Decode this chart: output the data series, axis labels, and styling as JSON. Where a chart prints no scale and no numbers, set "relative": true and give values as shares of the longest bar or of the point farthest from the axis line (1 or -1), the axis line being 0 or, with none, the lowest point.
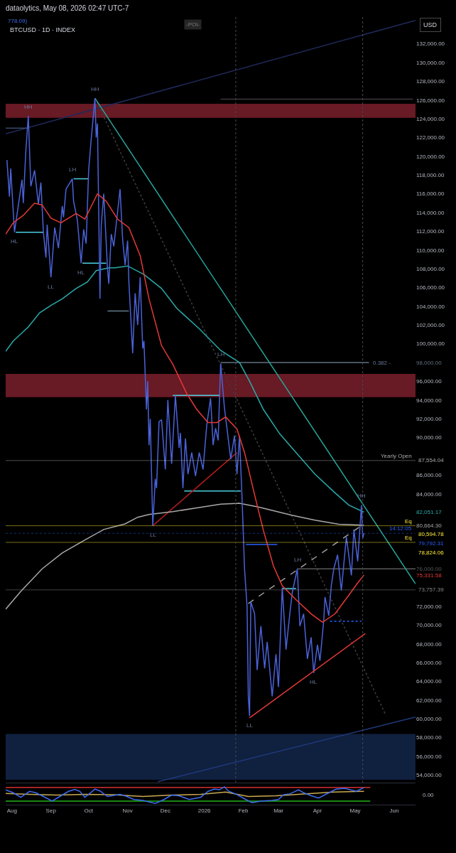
{
  "chart_data": [
    {
      "type": "line",
      "title": "dataolytics, May 08, 2026 02:47 UTC-7",
      "subtitle": "BTCUSD · 1D · INDEX",
      "ylabel": "USD",
      "xlim": [
        "2025-07-27",
        "2026-06-18"
      ],
      "ylim": [
        53200,
        135000
      ],
      "tick_labels": "y",
      "yticks": [
        {
          "value": 54000,
          "label": "54,000.00"
        },
        {
          "value": 56000,
          "label": "56,000.00"
        },
        {
          "value": 58000,
          "label": "58,000.00"
        },
        {
          "value": 60000,
          "label": "60,000.00"
        },
        {
          "value": 62000,
          "label": "62,000.00"
        },
        {
          "value": 64000,
          "label": "64,000.00"
        },
        {
          "value": 66000,
          "label": "66,000.00"
        },
        {
          "value": 68000,
          "label": "68,000.00"
        },
        {
          "value": 70000,
          "label": "70,000.00"
        },
        {
          "value": 72000,
          "label": "72,000.00"
        },
        {
          "value": 75331.58,
          "label": "75,331.58"
        },
        {
          "value": 76000,
          "label": "76,000.00"
        },
        {
          "value": 80664.3,
          "label": "80,664.30"
        },
        {
          "value": 82051.17,
          "label": "82,051.17"
        },
        {
          "value": 84000,
          "label": "84,000.00"
        },
        {
          "value": 86000,
          "label": "86,000.00"
        },
        {
          "value": 90000,
          "label": "90,000.00"
        },
        {
          "value": 92000,
          "label": "92,000.00"
        },
        {
          "value": 94000,
          "label": "94,000.00"
        },
        {
          "value": 96000,
          "label": "96,000.00"
        },
        {
          "value": 98000,
          "label": "98,000.00"
        },
        {
          "value": 100000,
          "label": "100,000.00"
        },
        {
          "value": 102000,
          "label": "102,000.00"
        },
        {
          "value": 104000,
          "label": "104,000.00"
        },
        {
          "value": 106000,
          "label": "106,000.00"
        },
        {
          "value": 108000,
          "label": "108,000.00"
        },
        {
          "value": 110000,
          "label": "110,000.00"
        },
        {
          "value": 112000,
          "label": "112,000.00"
        },
        {
          "value": 114000,
          "label": "114,000.00"
        },
        {
          "value": 116000,
          "label": "116,000.00"
        },
        {
          "value": 118000,
          "label": "118,000.00"
        },
        {
          "value": 120000,
          "label": "120,000.00"
        },
        {
          "value": 122000,
          "label": "122,000.00"
        },
        {
          "value": 124000,
          "label": "124,000.00"
        },
        {
          "value": 126000,
          "label": "126,000.00"
        },
        {
          "value": 128000,
          "label": "128,000.00"
        },
        {
          "value": 130000,
          "label": "130,000.00"
        },
        {
          "value": 132000,
          "label": "132,000.00"
        }
      ],
      "bands": [
        {
          "axis": "y",
          "from": 124100,
          "to": 125600,
          "color": "#7a1f2b"
        },
        {
          "axis": "y",
          "from": 94300,
          "to": 96800,
          "color": "#7a1f2b"
        },
        {
          "axis": "y",
          "from": 53500,
          "to": 58400,
          "color": "#13264a"
        }
      ],
      "ref_lines": [
        {
          "axis": "y",
          "value": 87554.04,
          "label": "87,554.04",
          "color": "#a8a8a8"
        },
        {
          "axis": "y",
          "value": 80594.78,
          "label": "80,594.78",
          "color": "#ffeb3b"
        },
        {
          "axis": "y",
          "value": 79792.31,
          "label": "79,792.31",
          "color": "#2962ff",
          "line_style": "dotted"
        },
        {
          "axis": "y",
          "value": 78824.06,
          "label": "78,824.06",
          "color": "#ffeb3b"
        },
        {
          "axis": "y",
          "value": 73757.39,
          "label": "73,757.39",
          "color": "#8a8a8a"
        },
        {
          "axis": "x",
          "value": "2026-01-26",
          "color": "#4a4a4a",
          "line_style": "dotted"
        },
        {
          "axis": "x",
          "value": "2026-05-07",
          "color": "#4a4a4a",
          "line_style": "dotted"
        }
      ],
      "annotations": [
        "-POI-",
        "778.09)",
        {
          "text": "HH",
          "x": "2025-08-14",
          "y": 124300
        },
        {
          "text": "HL",
          "x": "2025-08-03",
          "y": 111900
        },
        {
          "text": "LL",
          "x": "2025-09-01",
          "y": 107100
        },
        {
          "text": "LH",
          "x": "2025-09-18",
          "y": 117600
        },
        {
          "text": "HL",
          "x": "2025-09-25",
          "y": 108600
        },
        {
          "text": "HH",
          "x": "2025-10-06",
          "y": 126200
        },
        {
          "text": "LL",
          "x": "2025-11-21",
          "y": 80600
        },
        {
          "text": "LH",
          "x": "2026-01-14",
          "y": 97900
        },
        {
          "text": "LL",
          "x": "2026-02-06",
          "y": 60300
        },
        {
          "text": "LH",
          "x": "2026-03-16",
          "y": 76000
        },
        {
          "text": "HL",
          "x": "2026-03-29",
          "y": 64900
        },
        {
          "text": "HH",
          "x": "2026-05-06",
          "y": 82800
        },
        {
          "text": "0.382 -",
          "x": "2026-05-12",
          "y": 98000
        },
        {
          "text": "Yearly Open",
          "x": "2026-06-18",
          "y": 87554.04
        },
        {
          "text": "Eq",
          "x": "2026-06-18",
          "y": 80594.78
        },
        {
          "text": "14:12:05",
          "x": "2026-06-18",
          "y": 79792.31
        },
        {
          "text": "Eq",
          "x": "2026-06-18",
          "y": 78824.06
        }
      ],
      "series": [
        {
          "color": "#1f2a5a",
          "x": [
            "2025-07-27",
            "2026-06-18"
          ],
          "values": [
            122400,
            134500
          ]
        },
        {
          "color": "#1f3a7a",
          "x": [
            "2025-11-25",
            "2026-06-18"
          ],
          "values": [
            53300,
            60200
          ]
        },
        {
          "color": "#3c3c3c",
          "line_style": "dotted",
          "x": [
            "2025-10-06",
            "2026-05-25"
          ],
          "values": [
            126200,
            60500
          ]
        },
        {
          "color": "#3a3a3a",
          "x": [
            "2026-01-14",
            "2026-06-16"
          ],
          "values": [
            126100,
            126100
          ]
        },
        {
          "color": "#3a4a6b",
          "x": [
            "2025-07-27",
            "2025-08-14"
          ],
          "values": [
            123000,
            123000
          ]
        },
        {
          "color": "#607080",
          "x": [
            "2026-01-14",
            "2026-05-12"
          ],
          "values": [
            98000,
            98000
          ]
        },
        {
          "color": "#5a5a5a",
          "x": [
            "2026-03-16",
            "2026-06-18"
          ],
          "values": [
            76000,
            76000
          ]
        },
        {
          "color": "#4dd0e1",
          "x": [
            "2025-08-04",
            "2025-08-26"
          ],
          "values": [
            111900,
            111900
          ]
        },
        {
          "color": "#4dd0e1",
          "x": [
            "2025-09-19",
            "2025-10-01"
          ],
          "values": [
            117600,
            117600
          ]
        },
        {
          "color": "#4dd0e1",
          "x": [
            "2025-09-26",
            "2025-10-15"
          ],
          "values": [
            108600,
            108600
          ]
        },
        {
          "color": "#607d8b",
          "x": [
            "2025-10-16",
            "2025-11-02"
          ],
          "values": [
            103500,
            103500
          ]
        },
        {
          "color": "#4dd0e1",
          "x": [
            "2025-12-07",
            "2026-01-13"
          ],
          "values": [
            94500,
            94500
          ]
        },
        {
          "color": "#4dd0e1",
          "x": [
            "2025-12-16",
            "2026-01-30"
          ],
          "values": [
            84300,
            84300
          ]
        },
        {
          "color": "#2962ff",
          "x": [
            "2026-02-03",
            "2026-02-28"
          ],
          "values": [
            78600,
            78600
          ]
        },
        {
          "color": "#4dd0e1",
          "x": [
            "2026-03-04",
            "2026-03-15"
          ],
          "values": [
            73900,
            73900
          ]
        },
        {
          "color": "#2962ff",
          "line_style": "dotted",
          "x": [
            "2026-04-11",
            "2026-05-06"
          ],
          "values": [
            70400,
            70400
          ]
        },
        {
          "color": "#b71c1c",
          "x": [
            "2025-11-21",
            "2026-01-27"
          ],
          "values": [
            80600,
            88400
          ]
        },
        {
          "color": "#9e9e9e",
          "line_style": "dashed",
          "x": [
            "2026-02-05",
            "2026-05-07"
          ],
          "values": [
            72300,
            80700
          ]
        },
        {
          "color": "#26a69a",
          "x": [
            "2025-10-06",
            "2026-06-18"
          ],
          "values": [
            126200,
            74400
          ]
        },
        {
          "color": "#a8a8a8",
          "x": [
            "2025-07-27",
            "2025-08-08",
            "2025-08-25",
            "2025-09-10",
            "2025-09-27",
            "2025-10-13",
            "2025-10-30",
            "2025-11-09",
            "2025-11-18",
            "2025-12-07",
            "2025-12-26",
            "2026-01-14",
            "2026-01-29",
            "2026-02-13",
            "2026-03-12",
            "2026-03-30",
            "2026-04-18",
            "2026-05-08"
          ],
          "values": [
            71700,
            73600,
            76000,
            77700,
            79000,
            80200,
            80800,
            81500,
            81800,
            82100,
            82500,
            82900,
            83000,
            82600,
            81700,
            81200,
            80750,
            80664.3
          ]
        },
        {
          "color": "#2aa9a9",
          "x": [
            "2025-07-27",
            "2025-08-02",
            "2025-08-14",
            "2025-08-23",
            "2025-09-01",
            "2025-09-10",
            "2025-09-21",
            "2025-09-30",
            "2025-10-07",
            "2025-10-17",
            "2025-10-22",
            "2025-11-01",
            "2025-11-14",
            "2025-11-28",
            "2025-12-10",
            "2025-12-28",
            "2026-01-14",
            "2026-01-29",
            "2026-02-06",
            "2026-02-17",
            "2026-03-02",
            "2026-03-15",
            "2026-03-30",
            "2026-04-15",
            "2026-04-26",
            "2026-05-08"
          ],
          "values": [
            99200,
            100300,
            101800,
            103300,
            104100,
            104800,
            105900,
            106600,
            107800,
            108100,
            108100,
            108300,
            107400,
            105900,
            103800,
            101600,
            99300,
            98000,
            96000,
            93000,
            90400,
            88400,
            86100,
            84100,
            82800,
            82051.17
          ]
        },
        {
          "color": "#4a62d8",
          "x": [
            "2025-07-28",
            "2025-07-30",
            "2025-07-31",
            "2025-08-03",
            "2025-08-09",
            "2025-08-10",
            "2025-08-12",
            "2025-08-14",
            "2025-08-16",
            "2025-08-19",
            "2025-08-22",
            "2025-08-24",
            "2025-08-26",
            "2025-08-28",
            "2025-08-29",
            "2025-09-01",
            "2025-09-04",
            "2025-09-07",
            "2025-09-10",
            "2025-09-11",
            "2025-09-13",
            "2025-09-18",
            "2025-09-19",
            "2025-09-22",
            "2025-09-25",
            "2025-09-27",
            "2025-09-29",
            "2025-10-01",
            "2025-10-03",
            "2025-10-06",
            "2025-10-07",
            "2025-10-08",
            "2025-10-10",
            "2025-10-11",
            "2025-10-13",
            "2025-10-16",
            "2025-10-17",
            "2025-10-19",
            "2025-10-21",
            "2025-10-26",
            "2025-10-28",
            "2025-10-30",
            "2025-11-01",
            "2025-11-02",
            "2025-11-04",
            "2025-11-05",
            "2025-11-07",
            "2025-11-09",
            "2025-11-11",
            "2025-11-13",
            "2025-11-14",
            "2025-11-16",
            "2025-11-17",
            "2025-11-18",
            "2025-11-19",
            "2025-11-21",
            "2025-11-23",
            "2025-11-24",
            "2025-11-26",
            "2025-11-28",
            "2025-12-01",
            "2025-12-03",
            "2025-12-06",
            "2025-12-09",
            "2025-12-12",
            "2025-12-13",
            "2025-12-15",
            "2025-12-17",
            "2025-12-19",
            "2025-12-22",
            "2025-12-25",
            "2025-12-28",
            "2025-12-31",
            "2026-01-03",
            "2026-01-06",
            "2026-01-08",
            "2026-01-10",
            "2026-01-12",
            "2026-01-14",
            "2026-01-17",
            "2026-01-22",
            "2026-01-25",
            "2026-01-27",
            "2026-01-29",
            "2026-01-31",
            "2026-02-02",
            "2026-02-04",
            "2026-02-05",
            "2026-02-06",
            "2026-02-07",
            "2026-02-10",
            "2026-02-12",
            "2026-02-15",
            "2026-02-18",
            "2026-02-20",
            "2026-02-24",
            "2026-02-27",
            "2026-03-01",
            "2026-03-04",
            "2026-03-07",
            "2026-03-10",
            "2026-03-12",
            "2026-03-16",
            "2026-03-18",
            "2026-03-21",
            "2026-03-24",
            "2026-03-27",
            "2026-03-29",
            "2026-04-01",
            "2026-04-03",
            "2026-04-06",
            "2026-04-07",
            "2026-04-10",
            "2026-04-12",
            "2026-04-14",
            "2026-04-17",
            "2026-04-20",
            "2026-04-24",
            "2026-04-28",
            "2026-04-30",
            "2026-05-03",
            "2026-05-06",
            "2026-05-07",
            "2026-05-08"
          ],
          "values": [
            119600,
            115700,
            118700,
            111900,
            117500,
            115000,
            120500,
            124300,
            116800,
            118500,
            114900,
            117200,
            111900,
            109200,
            112700,
            107100,
            112400,
            110200,
            114700,
            113500,
            116500,
            117600,
            115200,
            113200,
            108600,
            112200,
            110700,
            118500,
            121800,
            126200,
            122000,
            123500,
            104800,
            112600,
            116000,
            108000,
            106400,
            111700,
            110400,
            116500,
            111200,
            108400,
            111000,
            106600,
            101600,
            99000,
            105400,
            102000,
            107100,
            99500,
            100300,
            93000,
            96000,
            89200,
            92000,
            80600,
            85600,
            84600,
            91700,
            91900,
            86600,
            94000,
            87200,
            94500,
            88900,
            90500,
            84600,
            89900,
            86100,
            88400,
            85900,
            88400,
            86600,
            91400,
            94200,
            89200,
            91000,
            89700,
            97900,
            93200,
            87700,
            90200,
            86100,
            90200,
            83600,
            76000,
            72000,
            62400,
            60300,
            72500,
            71200,
            65200,
            69900,
            65400,
            68200,
            62400,
            66900,
            63400,
            74000,
            67400,
            71200,
            73500,
            76000,
            69900,
            71200,
            66400,
            68700,
            64900,
            67900,
            66200,
            70500,
            73000,
            71000,
            74200,
            76000,
            77500,
            73700,
            79400,
            75300,
            80200,
            76800,
            82800,
            79300,
            79792.31
          ]
        },
        {
          "color": "#e53935",
          "x": [
            "2025-07-27",
            "2025-08-02",
            "2025-08-10",
            "2025-08-19",
            "2025-08-25",
            "2025-09-01",
            "2025-09-09",
            "2025-09-21",
            "2025-09-28",
            "2025-10-08",
            "2025-10-15",
            "2025-10-24",
            "2025-11-02",
            "2025-11-11",
            "2025-11-18",
            "2025-11-28",
            "2025-12-07",
            "2025-12-18",
            "2025-12-26",
            "2026-01-04",
            "2026-01-11",
            "2026-01-18",
            "2026-01-27",
            "2026-02-02",
            "2026-02-10",
            "2026-02-17",
            "2026-02-25",
            "2026-03-04",
            "2026-03-15",
            "2026-03-27",
            "2026-04-05",
            "2026-04-15",
            "2026-04-26",
            "2026-05-03",
            "2026-05-08"
          ],
          "values": [
            111700,
            112900,
            113700,
            115000,
            114800,
            113400,
            112900,
            113900,
            113300,
            116000,
            115200,
            113300,
            112400,
            109400,
            104800,
            99800,
            97800,
            94700,
            93000,
            91600,
            91600,
            92200,
            90900,
            88400,
            83900,
            80100,
            76300,
            74200,
            72700,
            71200,
            70300,
            71200,
            73200,
            74500,
            75331.58
          ]
        },
        {
          "color": "#e53935",
          "x": [
            "2026-02-06",
            "2026-05-09"
          ],
          "values": [
            60100,
            69100
          ]
        }
      ]
    },
    {
      "type": "line",
      "relative": true,
      "xlim": [
        "2025-07-27",
        "2026-06-18"
      ],
      "tick_labels": "x",
      "xticks": [
        {
          "value": "2025-08-01",
          "label": "Aug"
        },
        {
          "value": "2025-09-01",
          "label": "Sep"
        },
        {
          "value": "2025-10-01",
          "label": "Oct"
        },
        {
          "value": "2025-11-01",
          "label": "Nov"
        },
        {
          "value": "2025-12-01",
          "label": "Dec"
        },
        {
          "value": "2026-01-01",
          "label": "2026"
        },
        {
          "value": "2026-02-01",
          "label": "Feb"
        },
        {
          "value": "2026-03-01",
          "label": "Mar"
        },
        {
          "value": "2026-04-01",
          "label": "Apr"
        },
        {
          "value": "2026-05-01",
          "label": "May"
        },
        {
          "value": "2026-06-01",
          "label": "Jun"
        }
      ],
      "annotations": [
        "0.00"
      ],
      "series": [
        {
          "color": "#d32f2f",
          "x": [
            "2025-07-27",
            "2026-05-13"
          ],
          "values": [
            0.95,
            0.95
          ]
        },
        {
          "color": "#22b318",
          "x": [
            "2025-07-27",
            "2026-05-13"
          ],
          "values": [
            0,
            0
          ]
        },
        {
          "color": "#c9a94f",
          "x": [
            "2025-07-27",
            "2025-08-15",
            "2025-09-06",
            "2025-09-28",
            "2025-10-21",
            "2025-11-13",
            "2025-12-06",
            "2025-12-29",
            "2026-01-18",
            "2026-02-05",
            "2026-02-27",
            "2026-03-21",
            "2026-04-14",
            "2026-05-08"
          ],
          "values": [
            0.53,
            0.47,
            0.42,
            0.47,
            0.45,
            0.32,
            0.42,
            0.47,
            0.63,
            0.32,
            0.37,
            0.5,
            0.63,
            0.68
          ]
        },
        {
          "color": "#3d6df2",
          "x": [
            "2025-07-27",
            "2025-08-02",
            "2025-08-08",
            "2025-08-15",
            "2025-08-20",
            "2025-08-26",
            "2025-09-02",
            "2025-09-09",
            "2025-09-15",
            "2025-09-20",
            "2025-09-24",
            "2025-09-28",
            "2025-10-06",
            "2025-10-10",
            "2025-10-16",
            "2025-10-26",
            "2025-10-30",
            "2025-11-06",
            "2025-11-13",
            "2025-11-23",
            "2025-11-30",
            "2025-12-06",
            "2025-12-12",
            "2025-12-20",
            "2025-12-29",
            "2026-01-04",
            "2026-01-09",
            "2026-01-13",
            "2026-01-17",
            "2026-01-20",
            "2026-01-27",
            "2026-02-03",
            "2026-02-08",
            "2026-02-15",
            "2026-02-24",
            "2026-03-01",
            "2026-03-05",
            "2026-03-10",
            "2026-03-17",
            "2026-03-21",
            "2026-03-27",
            "2026-04-02",
            "2026-04-09",
            "2026-04-16",
            "2026-04-23",
            "2026-04-27",
            "2026-05-02",
            "2026-05-08"
          ],
          "values": [
            0.79,
            0.58,
            0.26,
            0.68,
            0.58,
            0.32,
            0.0,
            0.37,
            0.68,
            0.82,
            0.68,
            0.26,
            0.84,
            0.71,
            0.32,
            0.47,
            0.37,
            0.11,
            0.05,
            -0.16,
            0.11,
            0.42,
            0.37,
            0.11,
            0.26,
            0.68,
            0.84,
            0.79,
            1.0,
            0.71,
            0.45,
            0.11,
            -0.11,
            0.0,
            0.05,
            0.11,
            0.45,
            0.5,
            0.79,
            0.58,
            0.37,
            0.21,
            0.53,
            0.84,
            0.89,
            0.79,
            0.68,
            0.95
          ]
        }
      ]
    }
  ]
}
